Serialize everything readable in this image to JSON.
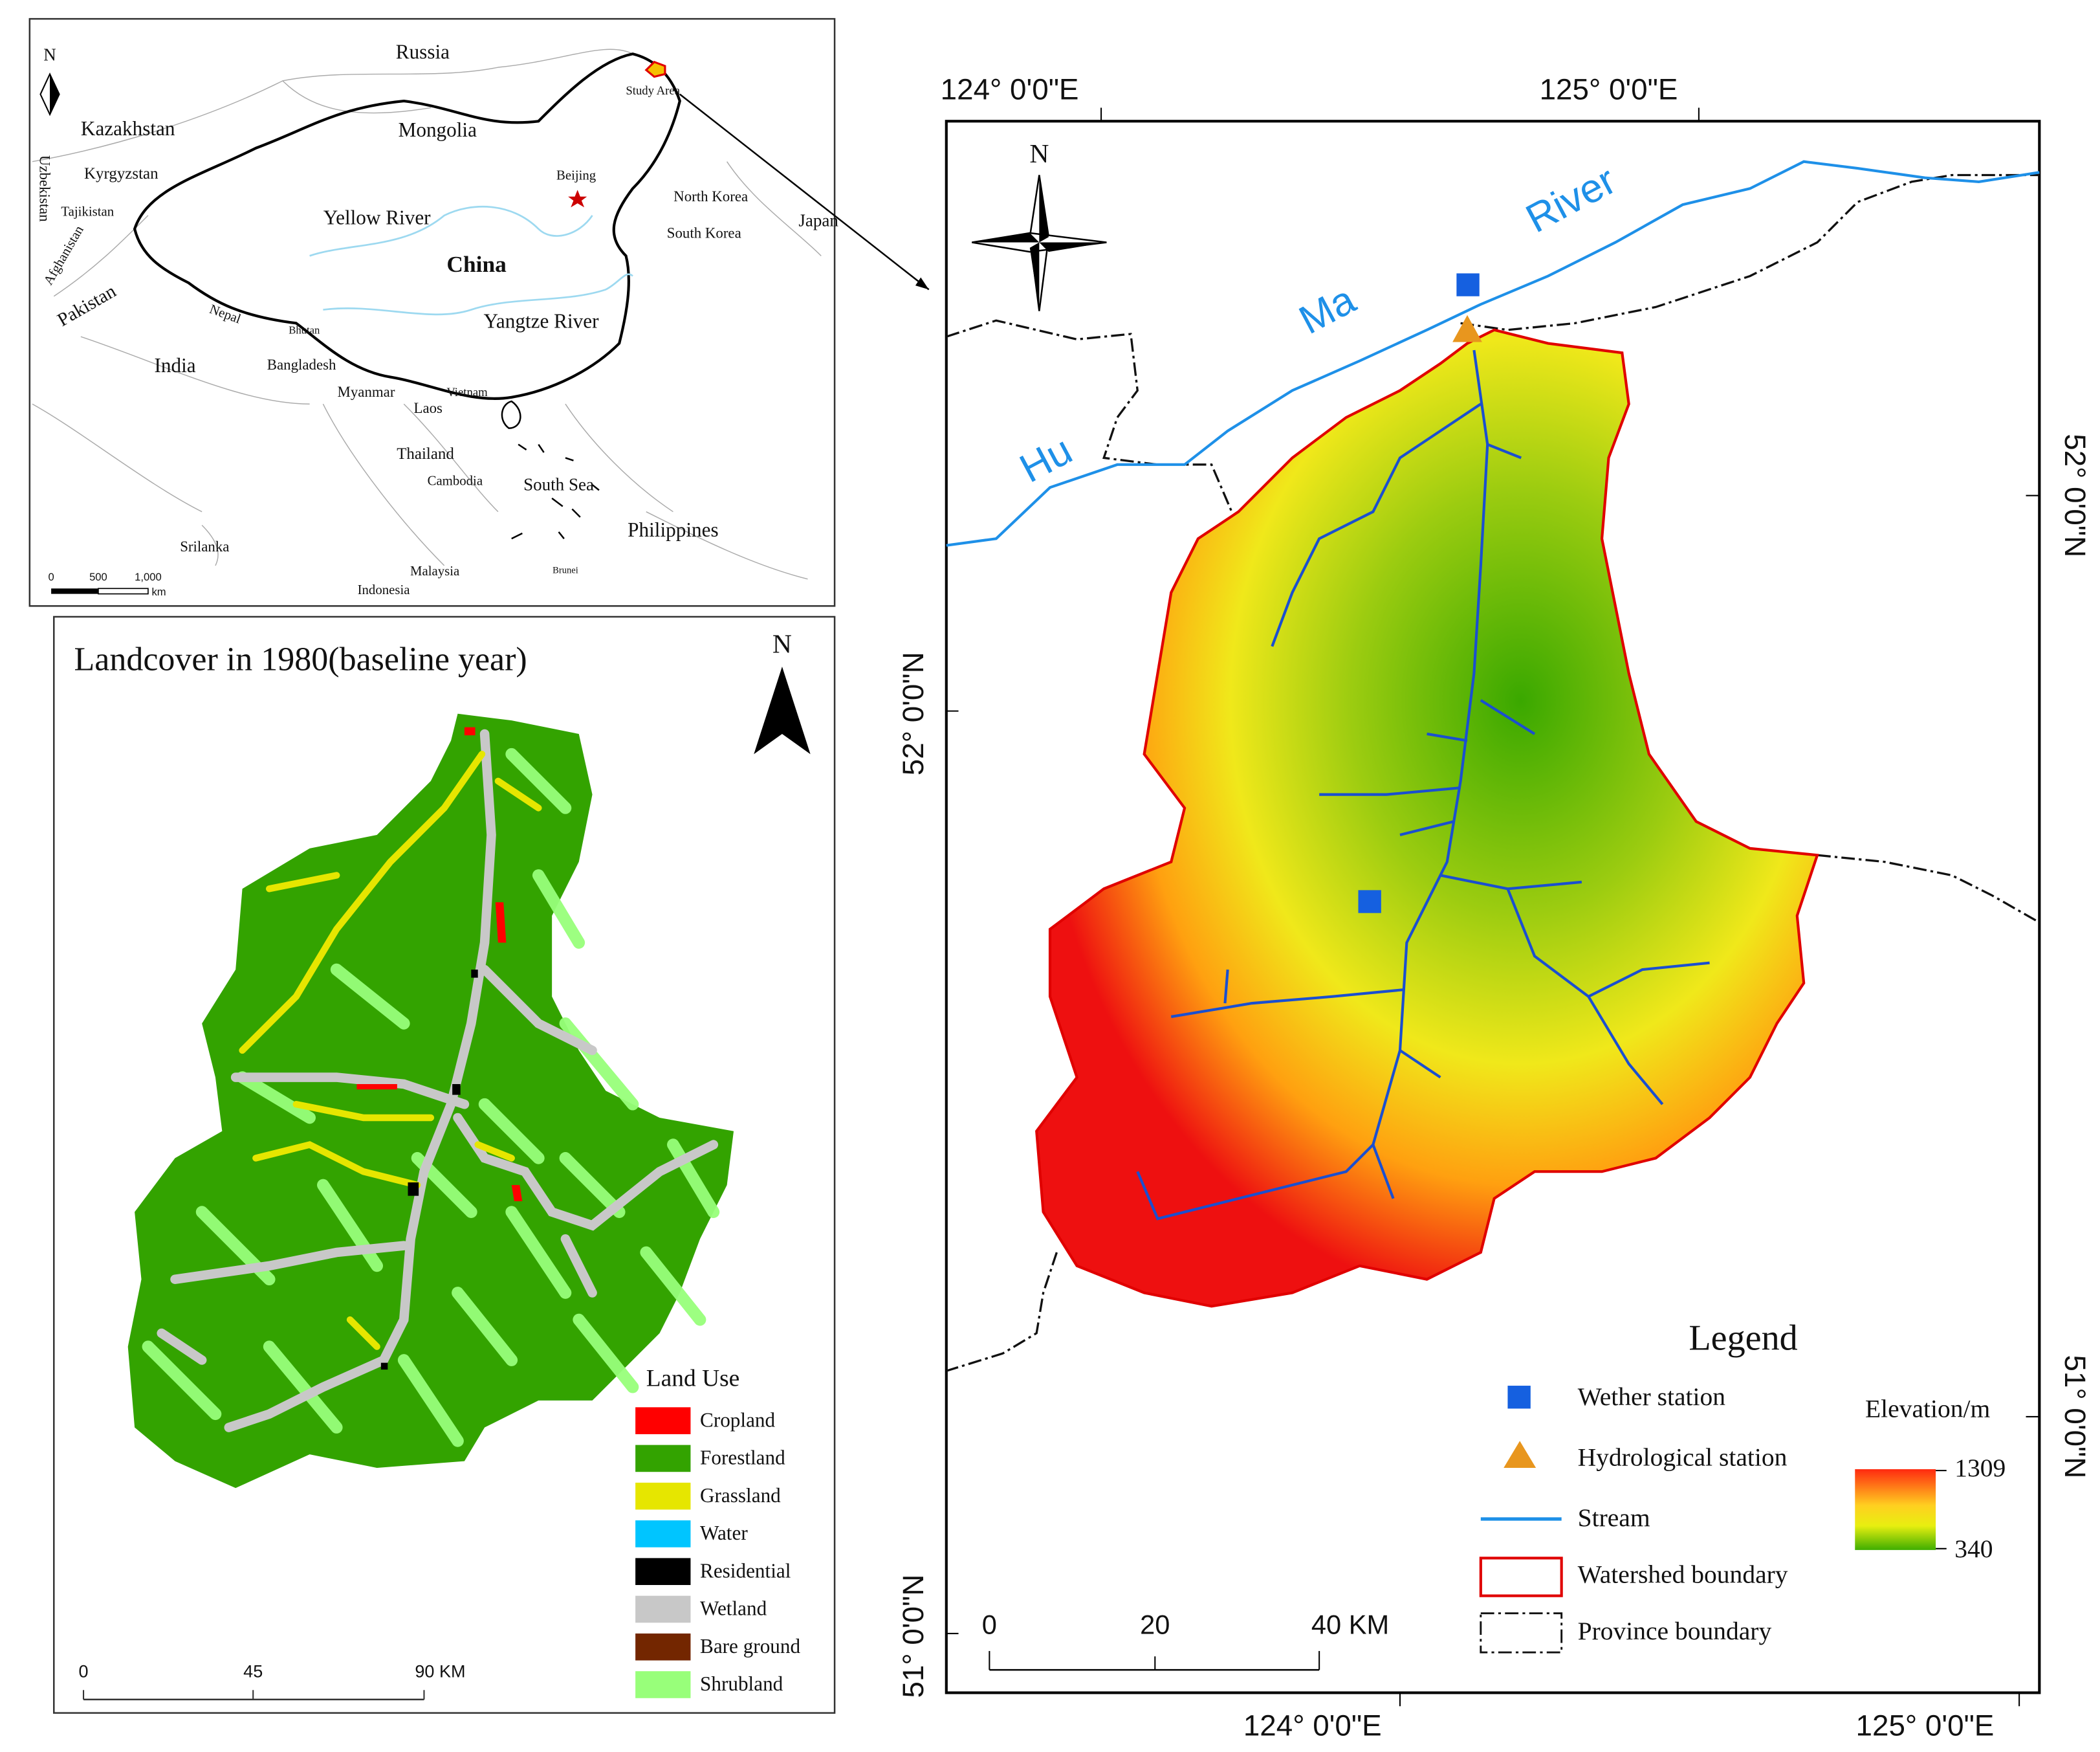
{
  "inset_map": {
    "north": "N",
    "labels": [
      "Russia",
      "Kazakhstan",
      "Mongolia",
      "Uzbekistan",
      "Kyrgyzstan",
      "Tajikistan",
      "Afghanistan",
      "Pakistan",
      "Yellow River",
      "China",
      "Beijing",
      "North Korea",
      "South Korea",
      "Japan",
      "Yangtze River",
      "Nepal",
      "Bhutan",
      "India",
      "Bangladesh",
      "Myanmar",
      "Laos",
      "Vietnam",
      "Thailand",
      "Cambodia",
      "South Sea",
      "Philippines",
      "Srilanka",
      "Malaysia",
      "Indonesia",
      "Brunei",
      "Study Area"
    ],
    "scale": [
      "0",
      "500",
      "1,000",
      "km"
    ]
  },
  "landcover_map": {
    "title": "Landcover in 1980(baseline year)",
    "north": "N",
    "legend_title": "Land Use",
    "legend": [
      {
        "label": "Cropland",
        "color": "#ff0000"
      },
      {
        "label": "Forestland",
        "color": "#33a300"
      },
      {
        "label": "Grassland",
        "color": "#e6e600"
      },
      {
        "label": "Water",
        "color": "#00c5ff"
      },
      {
        "label": "Residential",
        "color": "#000000"
      },
      {
        "label": "Wetland",
        "color": "#c8c8c8"
      },
      {
        "label": "Bare ground",
        "color": "#732600"
      },
      {
        "label": "Shrubland",
        "color": "#98ff7a"
      }
    ],
    "scale": [
      "0",
      "45",
      "90 KM"
    ]
  },
  "main_map": {
    "north": "N",
    "river_labels": [
      "Hu",
      "Ma",
      "River"
    ],
    "top_coords": [
      "124°  0'0\"E",
      "125°  0'0\"E"
    ],
    "bottom_coords": [
      "124°  0'0\"E",
      "125°  0'0\"E"
    ],
    "left_coords": [
      "52°  0'0\"N",
      "51°  0'0\"N"
    ],
    "right_coords": [
      "52°  0'0\"N",
      "51°  0'0\"N"
    ],
    "scale": [
      "0",
      "20",
      "40 KM"
    ],
    "legend": {
      "title": "Legend",
      "items": [
        "Wether station",
        "Hydrological station",
        "Stream",
        "Watershed boundary",
        "Province boundary"
      ],
      "elevation_title": "Elevation/m",
      "elevation_max": 1309,
      "elevation_min": 340
    }
  }
}
